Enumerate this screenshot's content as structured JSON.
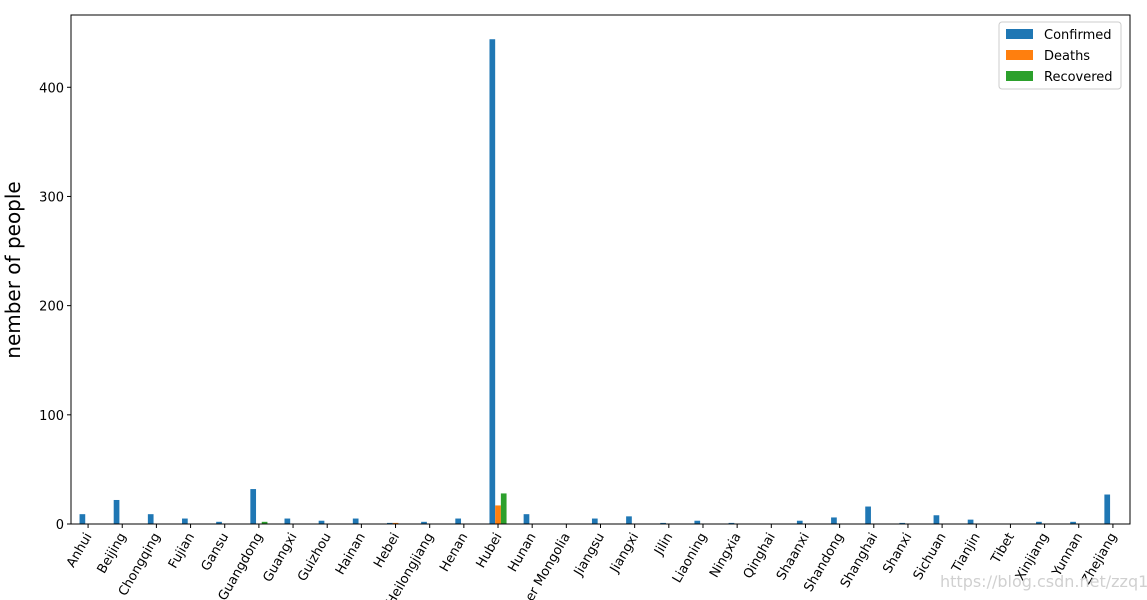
{
  "chart_data": {
    "type": "bar",
    "ylabel": "nember of people",
    "categories": [
      "Anhui",
      "Beijing",
      "Chongqing",
      "Fujian",
      "Gansu",
      "Guangdong",
      "Guangxi",
      "Guizhou",
      "Hainan",
      "Hebei",
      "Heilongjiang",
      "Henan",
      "Hubei",
      "Hunan",
      "Inner Mongolia",
      "Jiangsu",
      "Jiangxi",
      "Jilin",
      "Liaoning",
      "Ningxia",
      "Qinghai",
      "Shaanxi",
      "Shandong",
      "Shanghai",
      "Shanxi",
      "Sichuan",
      "Tianjin",
      "Tibet",
      "Xinjiang",
      "Yunnan",
      "Zhejiang"
    ],
    "series": [
      {
        "name": "Confirmed",
        "color": "#1f77b4",
        "values": [
          9,
          22,
          9,
          5,
          2,
          32,
          5,
          3,
          5,
          1,
          2,
          5,
          444,
          9,
          0,
          5,
          7,
          1,
          3,
          1,
          0,
          3,
          6,
          16,
          1,
          8,
          4,
          0,
          2,
          2,
          27
        ]
      },
      {
        "name": "Deaths",
        "color": "#ff7f0e",
        "values": [
          0,
          0,
          0,
          0,
          0,
          0,
          0,
          0,
          0,
          1,
          0,
          0,
          17,
          0,
          0,
          0,
          0,
          0,
          0,
          0,
          0,
          0,
          0,
          0,
          0,
          0,
          0,
          0,
          0,
          0,
          0
        ]
      },
      {
        "name": "Recovered",
        "color": "#2ca02c",
        "values": [
          0,
          0,
          0,
          0,
          0,
          2,
          0,
          0,
          0,
          0,
          0,
          0,
          28,
          0,
          0,
          0,
          0,
          0,
          0,
          0,
          0,
          0,
          0,
          0,
          0,
          0,
          0,
          0,
          0,
          0,
          0
        ]
      }
    ],
    "ylim": [
      0,
      466.2
    ],
    "yticks": [
      0,
      100,
      200,
      300,
      400
    ],
    "legend": "upper right",
    "watermark": "https://blog.csdn.net/zzq1011"
  }
}
